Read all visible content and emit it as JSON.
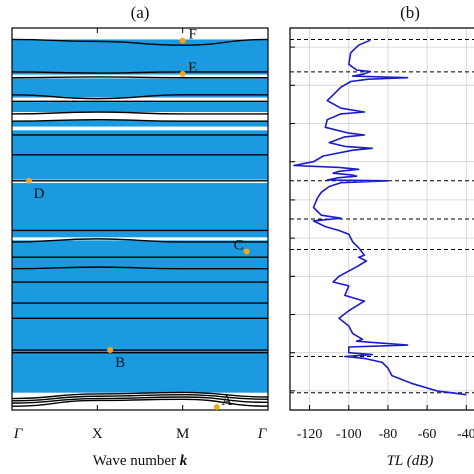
{
  "panels": {
    "a": {
      "label": "(a)"
    },
    "b": {
      "label": "(b)"
    }
  },
  "colors": {
    "band_fill": "#1a9ae0",
    "band_line": "#000000",
    "point": "#f0a81e",
    "tl_curve": "#1c1ccc",
    "dashed": "#000000",
    "grid": "#d0d0d0"
  },
  "chart_data": [
    {
      "type": "line",
      "panel": "(a)",
      "xlabel": "Wave number k",
      "ylabel": "",
      "x_ticks": [
        "Γ",
        "X",
        "M",
        "Γ"
      ],
      "grid": false,
      "band_gaps_shaded": true,
      "bands": [
        [
          0.01,
          0.025,
          0.028,
          0.01
        ],
        [
          0.018,
          0.03,
          0.034,
          0.02
        ],
        [
          0.024,
          0.036,
          0.04,
          0.028
        ],
        [
          0.03,
          0.042,
          0.046,
          0.034
        ],
        [
          0.15,
          0.15,
          0.15,
          0.15
        ],
        [
          0.157,
          0.157,
          0.157,
          0.157
        ],
        [
          0.24,
          0.24,
          0.24,
          0.24
        ],
        [
          0.28,
          0.28,
          0.28,
          0.28
        ],
        [
          0.335,
          0.335,
          0.335,
          0.335
        ],
        [
          0.37,
          0.374,
          0.37,
          0.37
        ],
        [
          0.4,
          0.4,
          0.4,
          0.4
        ],
        [
          0.44,
          0.448,
          0.44,
          0.44
        ],
        [
          0.47,
          0.47,
          0.47,
          0.47
        ],
        [
          0.6,
          0.6,
          0.6,
          0.6
        ],
        [
          0.668,
          0.668,
          0.668,
          0.668
        ],
        [
          0.72,
          0.72,
          0.72,
          0.72
        ],
        [
          0.756,
          0.76,
          0.756,
          0.756
        ],
        [
          0.775,
          0.78,
          0.775,
          0.775
        ],
        [
          0.808,
          0.808,
          0.808,
          0.808
        ],
        [
          0.825,
          0.815,
          0.825,
          0.825
        ],
        [
          0.87,
          0.872,
          0.87,
          0.87
        ],
        [
          0.885,
          0.882,
          0.885,
          0.885
        ],
        [
          0.97,
          0.965,
          0.955,
          0.97
        ]
      ],
      "points": [
        {
          "label": "A",
          "x": 2.4,
          "y": 0.008
        },
        {
          "label": "B",
          "x": 1.15,
          "y": 0.157
        },
        {
          "label": "C",
          "x": 2.75,
          "y": 0.415
        },
        {
          "label": "D",
          "x": 0.2,
          "y": 0.6
        },
        {
          "label": "E",
          "x": 2.0,
          "y": 0.88
        },
        {
          "label": "F",
          "x": 2.0,
          "y": 0.967
        }
      ]
    },
    {
      "type": "line",
      "panel": "(b)",
      "xlabel": "TL (dB)",
      "x_ticks": [
        "-120",
        "-100",
        "-80",
        "-60",
        "-40"
      ],
      "xlim": [
        -130,
        -33
      ],
      "grid": true,
      "dashed_lines_y": [
        0.045,
        0.14,
        0.42,
        0.5,
        0.6,
        0.885,
        0.97
      ],
      "series": [
        {
          "points": [
            [
              -89,
              0.968
            ],
            [
              -95,
              0.955
            ],
            [
              -99,
              0.935
            ],
            [
              -100,
              0.905
            ],
            [
              -96,
              0.89
            ],
            [
              -89,
              0.886
            ],
            [
              -92,
              0.88
            ],
            [
              -98,
              0.874
            ],
            [
              -70,
              0.87
            ],
            [
              -90,
              0.866
            ],
            [
              -99,
              0.86
            ],
            [
              -104,
              0.845
            ],
            [
              -108,
              0.825
            ],
            [
              -111,
              0.81
            ],
            [
              -104,
              0.79
            ],
            [
              -92,
              0.78
            ],
            [
              -104,
              0.775
            ],
            [
              -111,
              0.76
            ],
            [
              -112,
              0.74
            ],
            [
              -100,
              0.725
            ],
            [
              -92,
              0.72
            ],
            [
              -102,
              0.715
            ],
            [
              -110,
              0.7
            ],
            [
              -102,
              0.69
            ],
            [
              -88,
              0.685
            ],
            [
              -98,
              0.68
            ],
            [
              -113,
              0.665
            ],
            [
              -118,
              0.65
            ],
            [
              -128,
              0.64
            ],
            [
              -105,
              0.635
            ],
            [
              -95,
              0.63
            ],
            [
              -105,
              0.625
            ],
            [
              -108,
              0.62
            ],
            [
              -98,
              0.615
            ],
            [
              -96,
              0.612
            ],
            [
              -105,
              0.608
            ],
            [
              -111,
              0.602
            ],
            [
              -80,
              0.6
            ],
            [
              -104,
              0.595
            ],
            [
              -110,
              0.585
            ],
            [
              -114,
              0.57
            ],
            [
              -116,
              0.555
            ],
            [
              -118,
              0.53
            ],
            [
              -114,
              0.51
            ],
            [
              -104,
              0.502
            ],
            [
              -118,
              0.495
            ],
            [
              -112,
              0.48
            ],
            [
              -105,
              0.47
            ],
            [
              -100,
              0.46
            ],
            [
              -98,
              0.44
            ],
            [
              -95,
              0.425
            ],
            [
              -92,
              0.405
            ],
            [
              -95,
              0.4
            ],
            [
              -91,
              0.39
            ],
            [
              -96,
              0.375
            ],
            [
              -105,
              0.35
            ],
            [
              -108,
              0.335
            ],
            [
              -100,
              0.325
            ],
            [
              -102,
              0.3
            ],
            [
              -92,
              0.285
            ],
            [
              -100,
              0.26
            ],
            [
              -105,
              0.24
            ],
            [
              -100,
              0.22
            ],
            [
              -98,
              0.2
            ],
            [
              -93,
              0.185
            ],
            [
              -96,
              0.18
            ],
            [
              -70,
              0.17
            ],
            [
              -100,
              0.165
            ],
            [
              -100,
              0.15
            ],
            [
              -88,
              0.145
            ],
            [
              -102,
              0.14
            ],
            [
              -92,
              0.135
            ],
            [
              -83,
              0.125
            ],
            [
              -80,
              0.11
            ],
            [
              -78,
              0.09
            ],
            [
              -68,
              0.07
            ],
            [
              -55,
              0.05
            ],
            [
              -40,
              0.04
            ]
          ]
        }
      ]
    }
  ]
}
